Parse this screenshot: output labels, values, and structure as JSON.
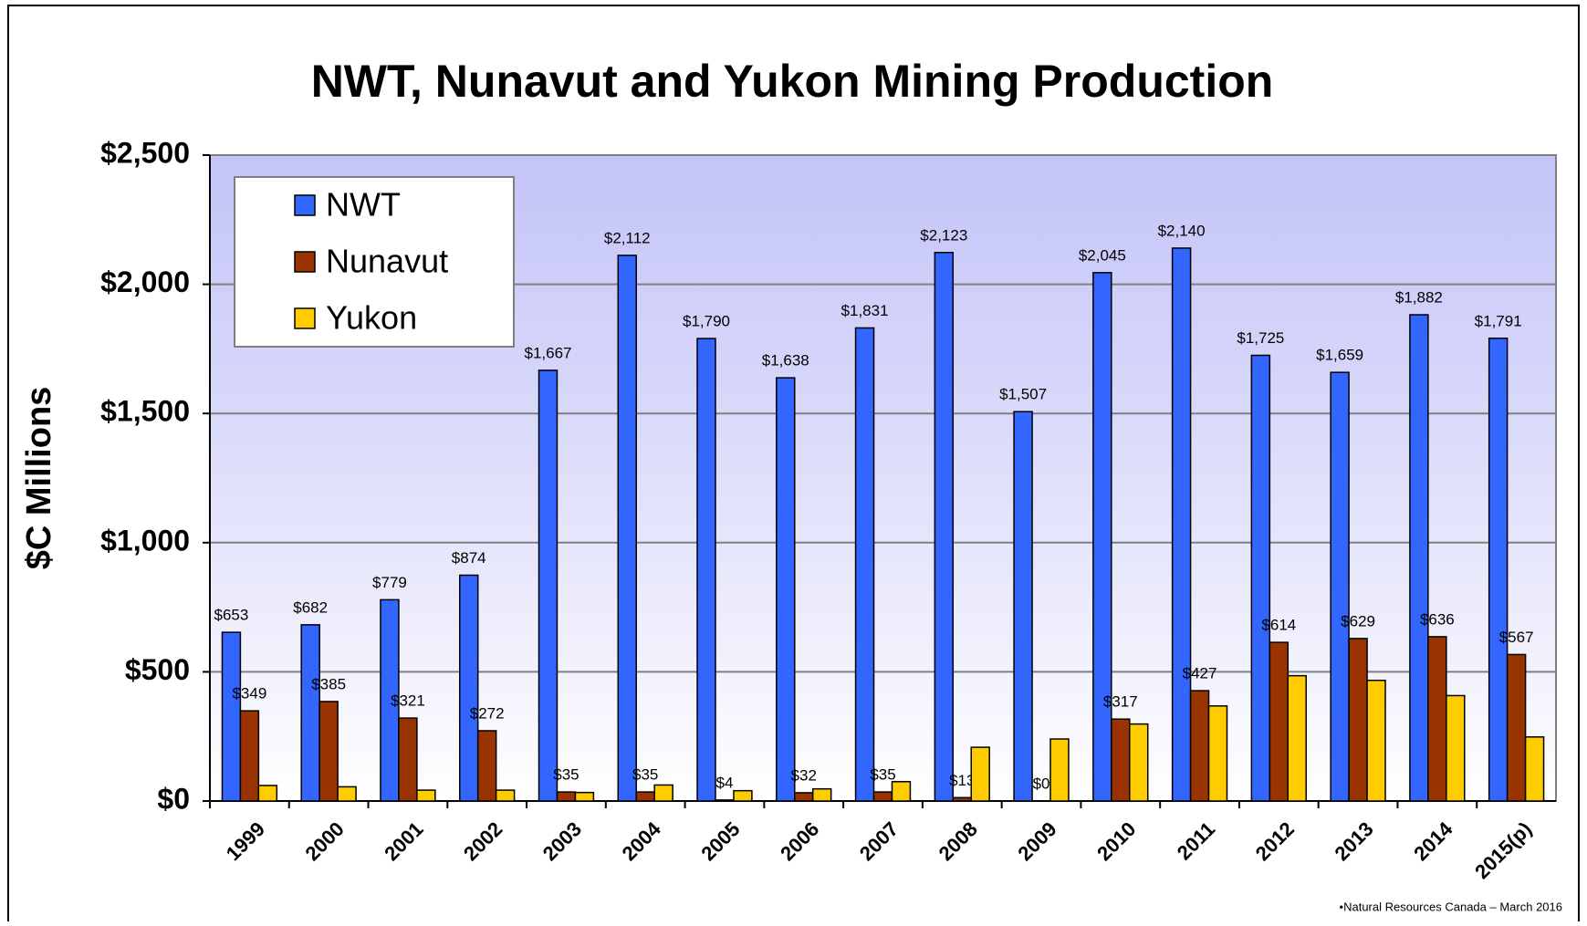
{
  "chart_data": {
    "type": "bar",
    "title": "NWT, Nunavut and Yukon Mining Production",
    "y_label": "$C Millions",
    "source": "•Natural Resources Canada – March 2016",
    "categories": [
      "1999",
      "2000",
      "2001",
      "2002",
      "2003",
      "2004",
      "2005",
      "2006",
      "2007",
      "2008",
      "2009",
      "2010",
      "2011",
      "2012",
      "2013",
      "2014",
      "2015(p)"
    ],
    "series": [
      {
        "name": "NWT",
        "color": "#3366ff",
        "values": [
          653,
          682,
          779,
          874,
          1667,
          2112,
          1790,
          1638,
          1831,
          2123,
          1507,
          2045,
          2140,
          1725,
          1659,
          1882,
          1791
        ],
        "value_labels": [
          "$653",
          "$682",
          "$779",
          "$874",
          "$1,667",
          "$2,112",
          "$1,790",
          "$1,638",
          "$1,831",
          "$2,123",
          "$1,507",
          "$2,045",
          "$2,140",
          "$1,725",
          "$1,659",
          "$1,882",
          "$1,791"
        ]
      },
      {
        "name": "Nunavut",
        "color": "#993300",
        "values": [
          349,
          385,
          321,
          272,
          35,
          35,
          4,
          32,
          35,
          13,
          0,
          317,
          427,
          614,
          629,
          636,
          567
        ],
        "value_labels": [
          "$349",
          "$385",
          "$321",
          "$272",
          "$35",
          "$35",
          "$4",
          "$32",
          "$35",
          "$13",
          "$0",
          "$317",
          "$427",
          "$614",
          "$629",
          "$636",
          "$567"
        ]
      },
      {
        "name": "Yukon",
        "color": "#ffcc00",
        "values": [
          60,
          55,
          42,
          42,
          33,
          62,
          40,
          47,
          75,
          208,
          240,
          298,
          368,
          485,
          467,
          408,
          248
        ]
      }
    ],
    "ylim": [
      0,
      2500
    ],
    "yticks": [
      {
        "value": 0,
        "label": "$0"
      },
      {
        "value": 500,
        "label": "$500"
      },
      {
        "value": 1000,
        "label": "$1,000"
      },
      {
        "value": 1500,
        "label": "$1,500"
      },
      {
        "value": 2000,
        "label": "$2,000"
      },
      {
        "value": 2500,
        "label": "$2,500"
      }
    ],
    "grid": true,
    "legend": "upper left"
  }
}
